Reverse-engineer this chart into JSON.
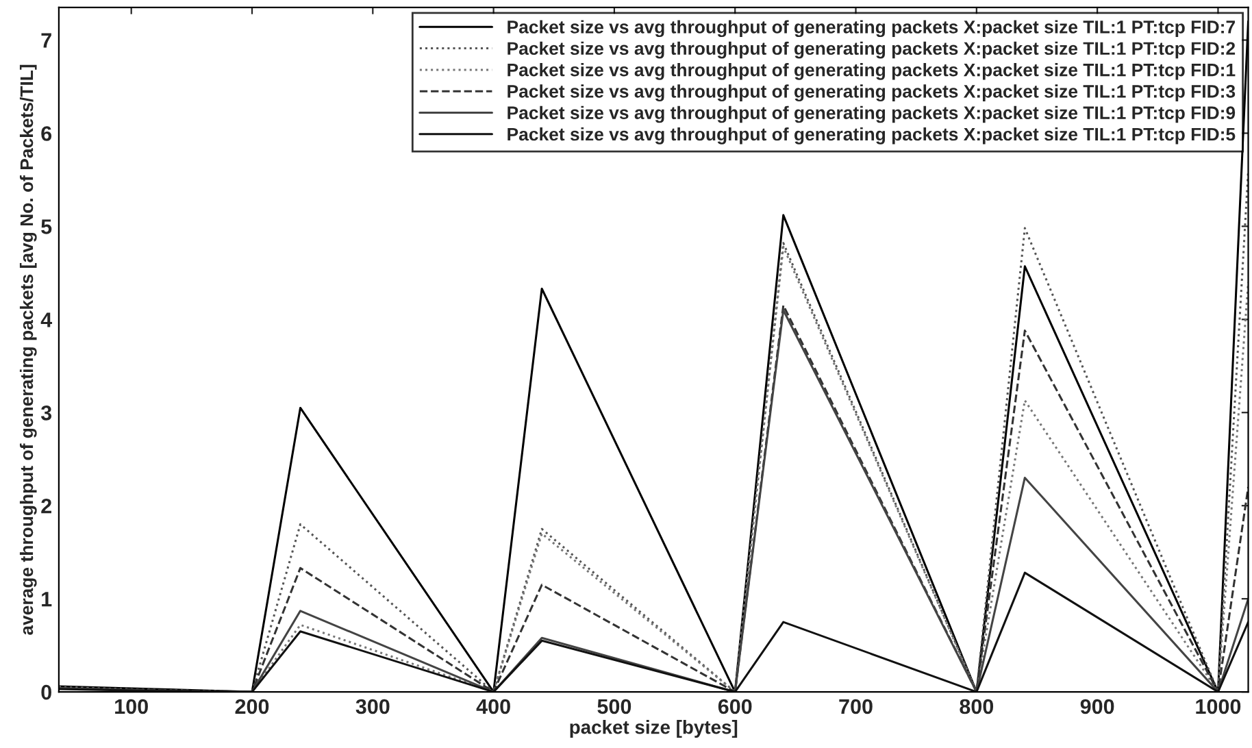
{
  "chart_data": {
    "type": "line",
    "xlabel": "packet size [bytes]",
    "ylabel": "average throughput of generating packets [avg No. of Packets/TIL]",
    "x": [
      40,
      120,
      200,
      240,
      400,
      440,
      600,
      640,
      800,
      840,
      1000,
      1025
    ],
    "xlim": [
      40,
      1025
    ],
    "ylim": [
      0,
      7.35
    ],
    "xticks": [
      100,
      200,
      300,
      400,
      500,
      600,
      700,
      800,
      900,
      1000
    ],
    "yticks": [
      0,
      1,
      2,
      3,
      4,
      5,
      6,
      7
    ],
    "grid": false,
    "legend": "top right",
    "marker": "none",
    "series": [
      {
        "name": "Packet size vs avg throughput of generating packets X:packet size TIL:1 PT:tcp FID:7",
        "color": "#000000",
        "line_style": "solid",
        "values": [
          0.06,
          0.03,
          0,
          3.05,
          0,
          4.33,
          0,
          5.12,
          0,
          4.57,
          0,
          7.2
        ]
      },
      {
        "name": "Packet size vs avg throughput of generating packets X:packet size TIL:1 PT:tcp FID:2",
        "color": "#555555",
        "line_style": "dotted",
        "values": [
          0.05,
          0.02,
          0,
          1.8,
          0,
          1.75,
          0,
          4.82,
          0,
          4.98,
          0,
          5.6
        ]
      },
      {
        "name": "Packet size vs avg throughput of generating packets X:packet size TIL:1 PT:tcp FID:1",
        "color": "#777777",
        "line_style": "dotted",
        "values": [
          0.05,
          0.02,
          0,
          0.72,
          0,
          1.7,
          0,
          4.78,
          0,
          3.13,
          0,
          4.4
        ]
      },
      {
        "name": "Packet size vs avg throughput of generating packets X:packet size TIL:1 PT:tcp FID:3",
        "color": "#333333",
        "line_style": "dashed",
        "values": [
          0.04,
          0.02,
          0,
          1.33,
          0,
          1.15,
          0,
          4.15,
          0,
          3.88,
          0,
          2.2
        ]
      },
      {
        "name": "Packet size vs avg throughput of generating packets X:packet size TIL:1 PT:tcp FID:9",
        "color": "#444444",
        "line_style": "solid",
        "values": [
          0.04,
          0.01,
          0,
          0.87,
          0,
          0.58,
          0,
          4.1,
          0,
          2.3,
          0,
          1.0
        ]
      },
      {
        "name": "Packet size vs avg throughput of generating packets X:packet size TIL:1 PT:tcp FID:5",
        "color": "#111111",
        "line_style": "solid",
        "values": [
          0.03,
          0.01,
          0,
          0.65,
          0,
          0.55,
          0,
          0.75,
          0,
          1.28,
          0,
          0.75
        ]
      }
    ]
  }
}
